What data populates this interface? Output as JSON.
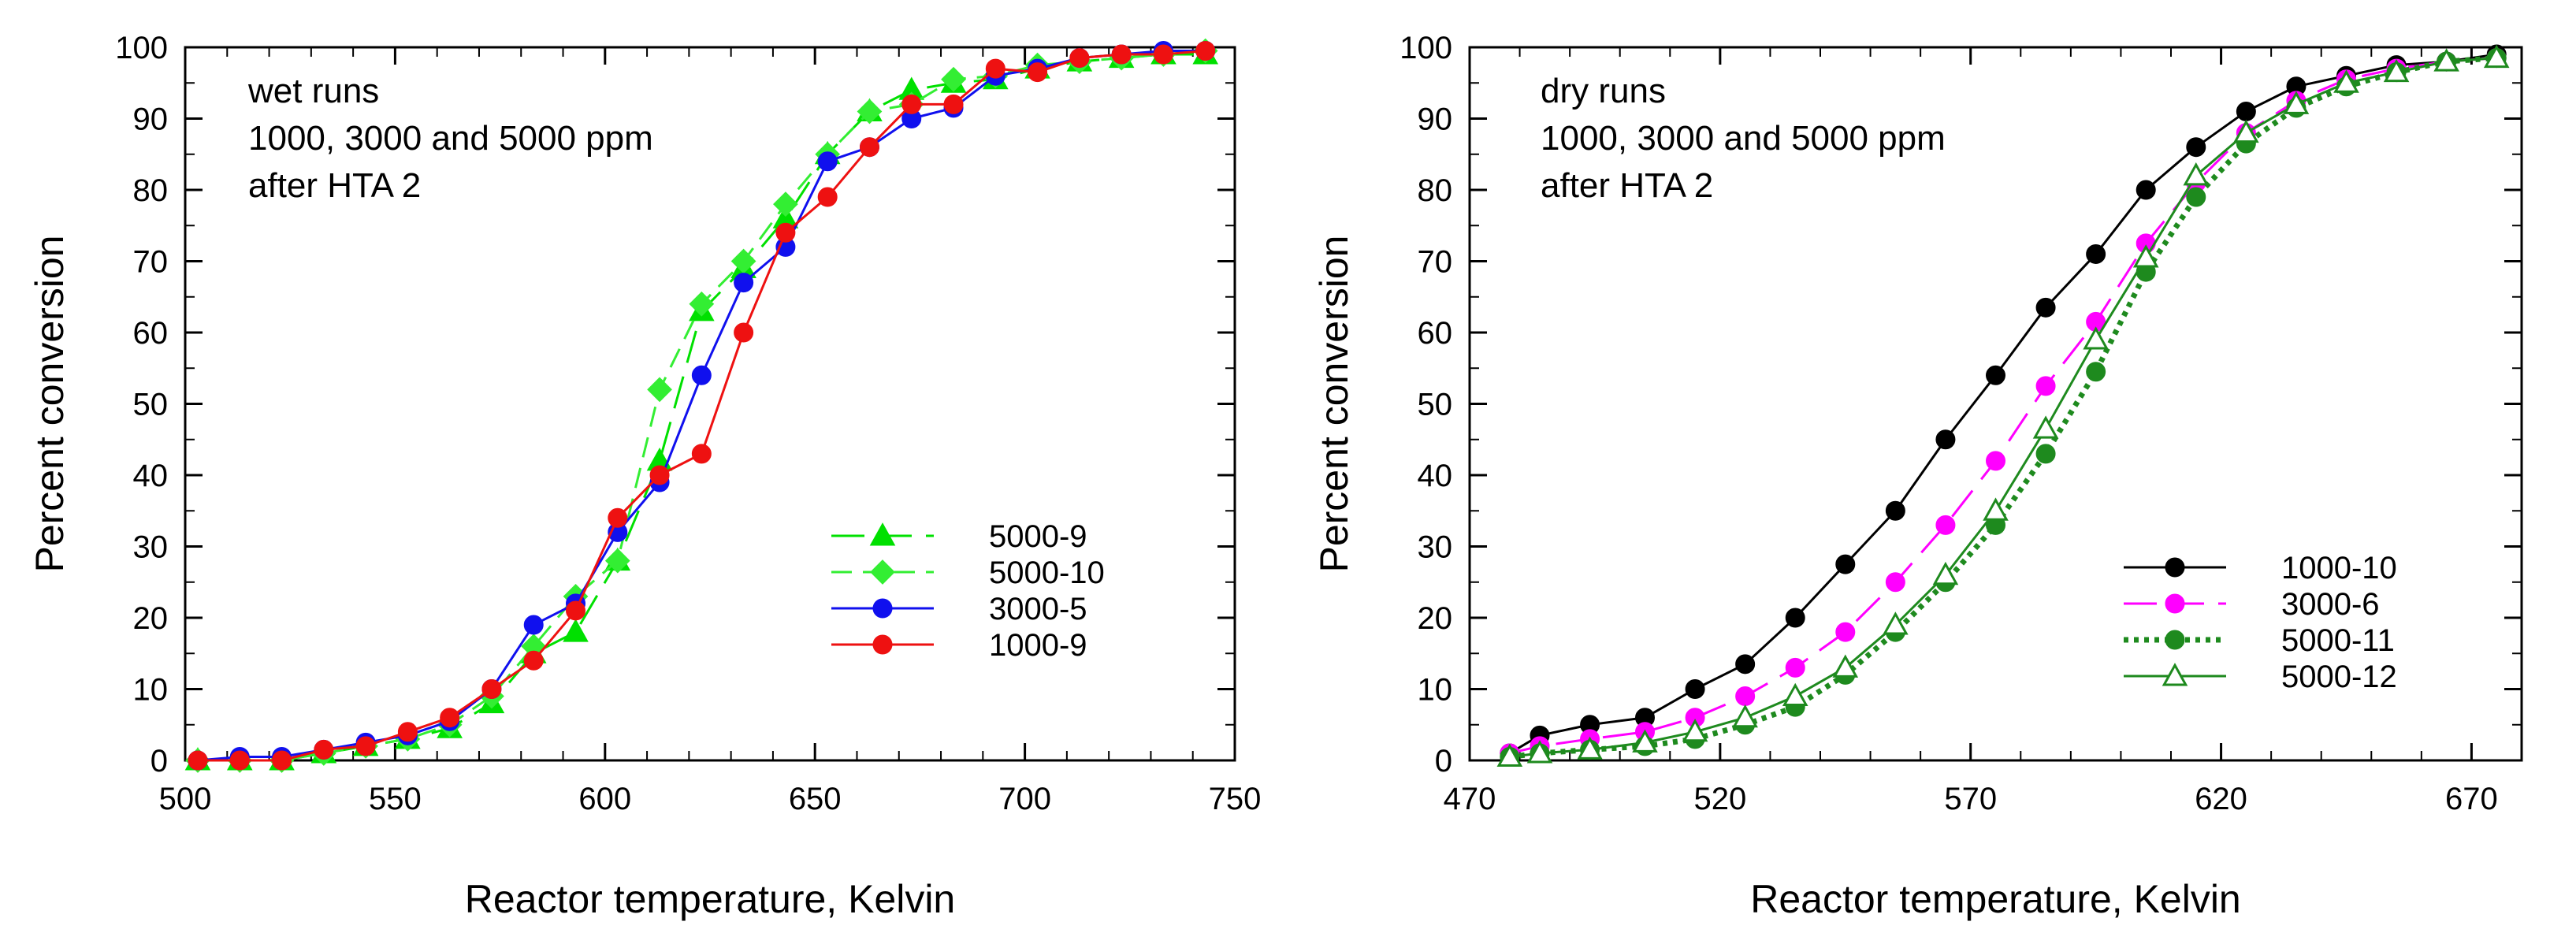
{
  "chart_data": [
    {
      "type": "line",
      "annotations": [
        "wet runs",
        "1000, 3000 and 5000 ppm",
        "after HTA 2"
      ],
      "xlabel": "Reactor temperature, Kelvin",
      "ylabel": "Percent conversion",
      "xlim": [
        500,
        750
      ],
      "ylim": [
        0,
        100
      ],
      "xticks": [
        500,
        550,
        600,
        650,
        700,
        750
      ],
      "yticks": [
        0,
        10,
        20,
        30,
        40,
        50,
        60,
        70,
        80,
        90,
        100
      ],
      "legend_position": "center-right",
      "series": [
        {
          "name": "5000-9",
          "color": "#00e000",
          "dash": "long-dash",
          "marker": "triangle",
          "fill": "solid",
          "x": [
            503,
            513,
            523,
            533,
            543,
            553,
            563,
            573,
            583,
            593,
            603,
            613,
            623,
            633,
            643,
            653,
            663,
            673,
            683,
            693,
            703,
            713,
            723,
            733,
            743
          ],
          "y": [
            0,
            0,
            0,
            1,
            2,
            3,
            4.5,
            8,
            15,
            18,
            28,
            42,
            63,
            69,
            76,
            85,
            91,
            94,
            95,
            95.5,
            97,
            98,
            98.5,
            99,
            99
          ]
        },
        {
          "name": "5000-10",
          "color": "#33ee33",
          "dash": "dash",
          "marker": "diamond",
          "fill": "solid",
          "x": [
            503,
            513,
            523,
            533,
            543,
            553,
            563,
            573,
            583,
            593,
            603,
            613,
            623,
            633,
            643,
            653,
            663,
            673,
            683,
            693,
            703,
            713,
            723,
            733,
            743
          ],
          "y": [
            0,
            0,
            0,
            1,
            2,
            3,
            5,
            9,
            16,
            23,
            28,
            52,
            64,
            70,
            78,
            85,
            91,
            92,
            95.5,
            96,
            97.5,
            98,
            98.5,
            99,
            99.5
          ]
        },
        {
          "name": "3000-5",
          "color": "#1010ee",
          "dash": "solid",
          "marker": "circle",
          "fill": "solid",
          "x": [
            503,
            513,
            523,
            533,
            543,
            553,
            563,
            573,
            583,
            593,
            603,
            613,
            623,
            633,
            643,
            653,
            663,
            673,
            683,
            693,
            703,
            713,
            723,
            733,
            743
          ],
          "y": [
            0,
            0.5,
            0.5,
            1.5,
            2.5,
            3.5,
            5.5,
            10,
            19,
            22,
            32,
            39,
            54,
            67,
            72,
            84,
            86,
            90,
            91.5,
            96,
            97,
            98.5,
            99,
            99.5,
            99.5
          ]
        },
        {
          "name": "1000-9",
          "color": "#ee1111",
          "dash": "solid",
          "marker": "circle",
          "fill": "solid",
          "x": [
            503,
            513,
            523,
            533,
            543,
            553,
            563,
            573,
            583,
            593,
            603,
            613,
            623,
            633,
            643,
            653,
            663,
            673,
            683,
            693,
            703,
            713,
            723,
            733,
            743
          ],
          "y": [
            0,
            0,
            0,
            1.5,
            2,
            4,
            6,
            10,
            14,
            21,
            34,
            40,
            43,
            60,
            74,
            79,
            86,
            92,
            92,
            97,
            96.5,
            98.5,
            99,
            99,
            99.5
          ]
        }
      ]
    },
    {
      "type": "line",
      "annotations": [
        "dry runs",
        "1000, 3000 and 5000 ppm",
        "after HTA 2"
      ],
      "xlabel": "Reactor temperature, Kelvin",
      "ylabel": "Percent conversion",
      "xlim": [
        470,
        680
      ],
      "ylim": [
        0,
        100
      ],
      "xticks": [
        470,
        520,
        570,
        620,
        670
      ],
      "yticks": [
        0,
        10,
        20,
        30,
        40,
        50,
        60,
        70,
        80,
        90,
        100
      ],
      "legend_position": "center-right",
      "series": [
        {
          "name": "1000-10",
          "color": "#000000",
          "dash": "solid",
          "marker": "circle",
          "fill": "solid",
          "x": [
            478,
            484,
            494,
            505,
            515,
            525,
            535,
            545,
            555,
            565,
            575,
            585,
            595,
            605,
            615,
            625,
            635,
            645,
            655,
            665,
            675
          ],
          "y": [
            1,
            3.5,
            5,
            6,
            10,
            13.5,
            20,
            27.5,
            35,
            45,
            54,
            63.5,
            71,
            80,
            86,
            91,
            94.5,
            96,
            97.5,
            98,
            99
          ]
        },
        {
          "name": "3000-6",
          "color": "#ff00ff",
          "dash": "long-dash",
          "marker": "circle",
          "fill": "solid",
          "x": [
            478,
            484,
            494,
            505,
            515,
            525,
            535,
            545,
            555,
            565,
            575,
            585,
            595,
            605,
            615,
            625,
            635,
            645,
            655,
            665,
            675
          ],
          "y": [
            1,
            2,
            3,
            4,
            6,
            9,
            13,
            18,
            25,
            33,
            42,
            52.5,
            61.5,
            72.5,
            81,
            88,
            92.5,
            95.5,
            97,
            98,
            98.5
          ]
        },
        {
          "name": "5000-11",
          "color": "#1e8a1e",
          "dash": "dotted",
          "marker": "circle",
          "fill": "solid",
          "x": [
            478,
            484,
            494,
            505,
            515,
            525,
            535,
            545,
            555,
            565,
            575,
            585,
            595,
            605,
            615,
            625,
            635,
            645,
            655,
            665,
            675
          ],
          "y": [
            0.5,
            1,
            1.5,
            2,
            3,
            5,
            7.5,
            12,
            18,
            25,
            33,
            43,
            54.5,
            68.5,
            79,
            86.5,
            91.5,
            94.5,
            96.5,
            98,
            98.5
          ]
        },
        {
          "name": "5000-12",
          "color": "#1e8a1e",
          "dash": "solid",
          "marker": "triangle",
          "fill": "open",
          "x": [
            478,
            484,
            494,
            505,
            515,
            525,
            535,
            545,
            555,
            565,
            575,
            585,
            595,
            605,
            615,
            625,
            635,
            645,
            655,
            665,
            675
          ],
          "y": [
            0.5,
            1,
            1.5,
            2.5,
            4,
            6,
            9,
            13,
            19,
            26,
            35,
            46.5,
            59,
            70.5,
            82,
            88,
            92,
            95,
            96.5,
            98,
            98.5
          ]
        }
      ]
    }
  ]
}
